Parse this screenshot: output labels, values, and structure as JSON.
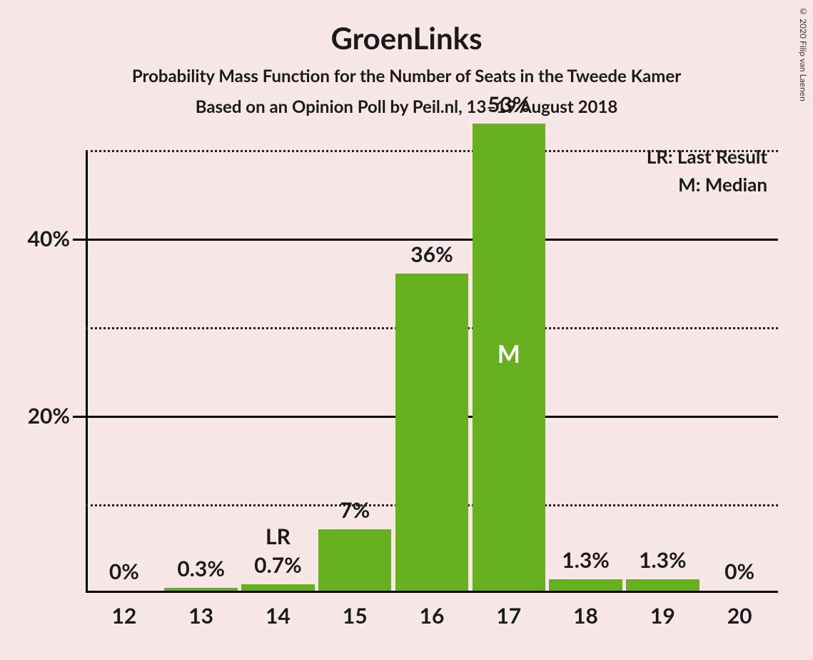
{
  "title": "GroenLinks",
  "subtitle": "Probability Mass Function for the Number of Seats in the Tweede Kamer",
  "sub2": "Based on an Opinion Poll by Peil.nl, 13–19 August 2018",
  "copyright": "© 2020 Filip van Laenen",
  "chart": {
    "type": "bar",
    "background_color": "#f8e7e7",
    "bar_color": "#66b020",
    "axis_color": "#000000",
    "grid_dotted_color": "#222222",
    "text_color": "#1a1a1a",
    "median_text_color": "#ffffff",
    "title_fontsize": 42,
    "subtitle_fontsize": 24,
    "label_fontsize": 30,
    "ylim": [
      0,
      50
    ],
    "y_major_ticks": [
      20,
      40
    ],
    "y_minor_ticks": [
      10,
      30,
      50
    ],
    "bar_width_ratio": 0.95,
    "categories": [
      "12",
      "13",
      "14",
      "15",
      "16",
      "17",
      "18",
      "19",
      "20"
    ],
    "values": [
      0,
      0.3,
      0.7,
      7,
      36,
      53,
      1.3,
      1.3,
      0
    ],
    "value_labels": [
      "0%",
      "0.3%",
      "0.7%",
      "7%",
      "36%",
      "53%",
      "1.3%",
      "1.3%",
      "0%"
    ],
    "lr_index": 2,
    "lr_label": "LR",
    "median_index": 5,
    "median_label": "M"
  },
  "legend": {
    "lr": "LR: Last Result",
    "m": "M: Median"
  },
  "y_axis_labels": {
    "20": "20%",
    "40": "40%"
  }
}
